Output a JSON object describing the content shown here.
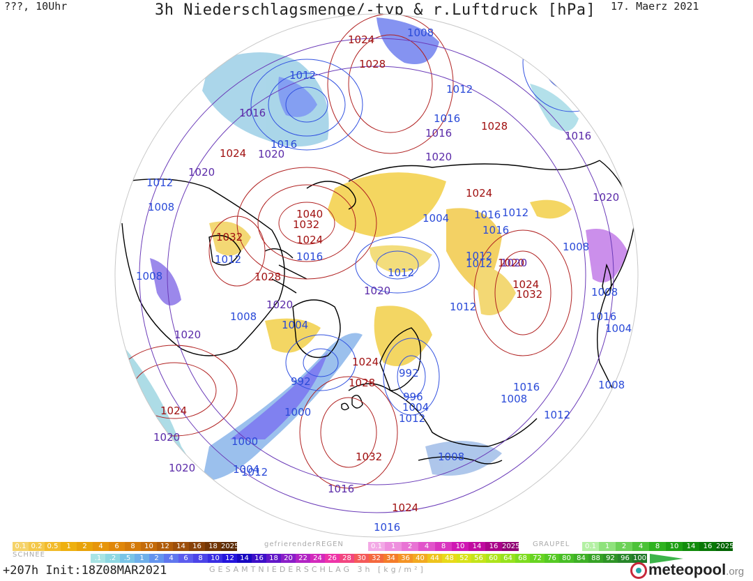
{
  "header": {
    "left": "???, 10Uhr",
    "title": "3h Niederschlagsmenge/-typ & r.Luftdruck [hPa]",
    "date": "17. Maerz 2021"
  },
  "isobar_labels_red": [
    "1024",
    "1028",
    "1028",
    "1024",
    "1024",
    "1040",
    "1032",
    "1024",
    "1032",
    "1028",
    "1020",
    "1024",
    "1032",
    "1024",
    "1028",
    "1032",
    "1024",
    "1024"
  ],
  "isobar_labels_blue": [
    "1008",
    "1012",
    "1012",
    "1016",
    "1008",
    "1012",
    "1008",
    "1012",
    "1004",
    "1016",
    "1012",
    "1016",
    "1012",
    "1004",
    "1016",
    "1008",
    "1012",
    "1012",
    "1000",
    "1016",
    "1012",
    "1008",
    "1008",
    "1016",
    "1004",
    "992",
    "992",
    "996",
    "1004",
    "1012",
    "1016",
    "1008",
    "1008",
    "1012",
    "1000",
    "1004",
    "1008",
    "1012",
    "1016"
  ],
  "isobar_labels_purple": [
    "1016",
    "1020",
    "1020",
    "1020",
    "1020",
    "1020",
    "1020",
    "1020",
    "1020",
    "1016",
    "1020",
    "1016",
    "1020",
    "1016"
  ],
  "legend": {
    "snow_label": "SCHNEE",
    "snow_values": [
      "0.1",
      "0.2",
      "0.5",
      "1",
      "2",
      "4",
      "6",
      "8",
      "10",
      "12",
      "14",
      "16",
      "18",
      "2025+"
    ],
    "snow_colors": [
      "#f5d36a",
      "#f4c84a",
      "#f2bb2b",
      "#eeb00f",
      "#e8a30a",
      "#e6950a",
      "#e0870a",
      "#d47a0a",
      "#c46b0a",
      "#b05c0a",
      "#9c4e0a",
      "#884208",
      "#723606",
      "#5a2a04"
    ],
    "freezing_label": "gefrierenderREGEN",
    "freezing_values": [
      "0.1",
      "1",
      "2",
      "4",
      "8",
      "10",
      "14",
      "16",
      "2025+"
    ],
    "freezing_colors": [
      "#f3a9e6",
      "#ee8fde",
      "#e873d4",
      "#e154ca",
      "#d935bf",
      "#cf17b3",
      "#c00ca0",
      "#aa068a",
      "#900474"
    ],
    "graupel_label": "GRAUPEL",
    "graupel_values": [
      "0.1",
      "1",
      "2",
      "4",
      "8",
      "10",
      "14",
      "16",
      "2025+"
    ],
    "graupel_colors": [
      "#b4f0a4",
      "#8fe27c",
      "#6cd257",
      "#4cc238",
      "#2eb21f",
      "#1ea014",
      "#128c0c",
      "#087806",
      "#026402"
    ],
    "total_values": [
      ".1",
      ".2",
      ".5",
      "1",
      "2",
      "4",
      "6",
      "8",
      "10",
      "12",
      "14",
      "16",
      "18",
      "20",
      "22",
      "24",
      "26",
      "28",
      "30",
      "32",
      "34",
      "36",
      "40",
      "44",
      "48",
      "52",
      "56",
      "60",
      "64",
      "68",
      "72",
      "76",
      "80",
      "84",
      "88",
      "92",
      "96",
      "100"
    ],
    "total_colors": [
      "#a8e4e4",
      "#8ed8e2",
      "#7ac4e6",
      "#6fb0ea",
      "#6494ee",
      "#6077ee",
      "#5c5cee",
      "#4c44e8",
      "#3a2ee2",
      "#2414dc",
      "#1808c0",
      "#3e10c8",
      "#6218c8",
      "#8a1ec8",
      "#b224c4",
      "#d32abc",
      "#ee34a8",
      "#f24680",
      "#f45a5a",
      "#f4683e",
      "#f47c2a",
      "#f49426",
      "#f2aa22",
      "#eec41e",
      "#e8da1a",
      "#d8e21a",
      "#c4e41a",
      "#aee41c",
      "#96e21e",
      "#7edc20",
      "#68d422",
      "#56ca24",
      "#48be26",
      "#3eb026",
      "#36a226",
      "#2e9426",
      "#28862a",
      "#207828"
    ],
    "gesamt_label": "GESAMTNIEDERSCHLAG 3h [kg/m²]"
  },
  "footer": {
    "forecast": "+207h Init:18Z08MAR2021",
    "brand": "meteopool",
    "brand_suffix": ".org"
  },
  "colors": {
    "high": "#a01010",
    "low": "#2a4ad8",
    "mid": "#5a2aa8",
    "coast": "#000000"
  }
}
